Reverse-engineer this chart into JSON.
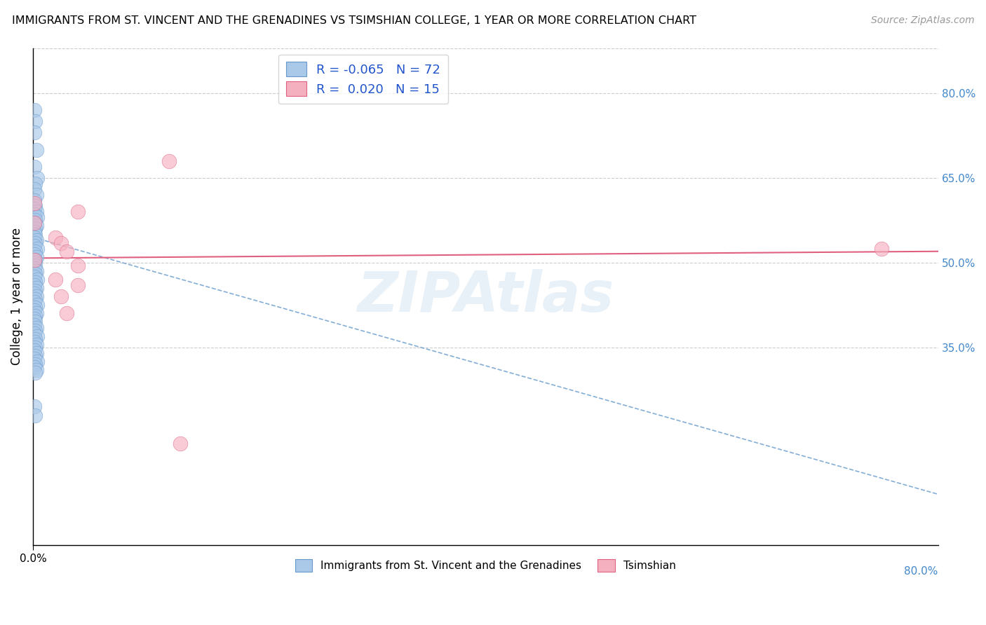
{
  "title": "IMMIGRANTS FROM ST. VINCENT AND THE GRENADINES VS TSIMSHIAN COLLEGE, 1 YEAR OR MORE CORRELATION CHART",
  "source": "Source: ZipAtlas.com",
  "ylabel": "College, 1 year or more",
  "xlim": [
    0.0,
    0.8
  ],
  "ylim": [
    0.0,
    0.88
  ],
  "yticks": [
    0.35,
    0.5,
    0.65,
    0.8
  ],
  "ytick_labels": [
    "35.0%",
    "50.0%",
    "65.0%",
    "80.0%"
  ],
  "xtick_bottom_left": "0.0%",
  "xtick_bottom_right": "80.0%",
  "watermark": "ZIPAtlas",
  "blue_R": -0.065,
  "blue_N": 72,
  "pink_R": 0.02,
  "pink_N": 15,
  "blue_color": "#aac8e8",
  "pink_color": "#f5b0c0",
  "blue_edge_color": "#6699cc",
  "pink_edge_color": "#e06080",
  "legend_label_blue": "Immigrants from St. Vincent and the Grenadines",
  "legend_label_pink": "Tsimshian",
  "blue_points_x": [
    0.001,
    0.002,
    0.001,
    0.003,
    0.001,
    0.004,
    0.002,
    0.001,
    0.003,
    0.001,
    0.002,
    0.001,
    0.003,
    0.001,
    0.004,
    0.002,
    0.001,
    0.003,
    0.002,
    0.001,
    0.002,
    0.001,
    0.003,
    0.002,
    0.001,
    0.004,
    0.002,
    0.001,
    0.003,
    0.002,
    0.001,
    0.002,
    0.001,
    0.003,
    0.002,
    0.001,
    0.004,
    0.002,
    0.001,
    0.003,
    0.002,
    0.001,
    0.003,
    0.002,
    0.001,
    0.004,
    0.002,
    0.001,
    0.003,
    0.002,
    0.001,
    0.002,
    0.001,
    0.003,
    0.002,
    0.001,
    0.004,
    0.002,
    0.001,
    0.003,
    0.002,
    0.001,
    0.003,
    0.002,
    0.001,
    0.004,
    0.002,
    0.001,
    0.003,
    0.002,
    0.001,
    0.002
  ],
  "blue_points_y": [
    0.77,
    0.75,
    0.73,
    0.7,
    0.67,
    0.65,
    0.64,
    0.63,
    0.62,
    0.61,
    0.6,
    0.595,
    0.59,
    0.585,
    0.58,
    0.575,
    0.57,
    0.565,
    0.56,
    0.555,
    0.55,
    0.545,
    0.54,
    0.535,
    0.53,
    0.525,
    0.52,
    0.515,
    0.51,
    0.505,
    0.5,
    0.495,
    0.49,
    0.485,
    0.48,
    0.475,
    0.47,
    0.465,
    0.46,
    0.455,
    0.45,
    0.445,
    0.44,
    0.435,
    0.43,
    0.425,
    0.42,
    0.415,
    0.41,
    0.405,
    0.4,
    0.395,
    0.39,
    0.385,
    0.38,
    0.375,
    0.37,
    0.365,
    0.36,
    0.355,
    0.35,
    0.345,
    0.34,
    0.335,
    0.33,
    0.325,
    0.32,
    0.315,
    0.31,
    0.305,
    0.245,
    0.23
  ],
  "pink_points_x": [
    0.001,
    0.001,
    0.001,
    0.02,
    0.02,
    0.025,
    0.025,
    0.03,
    0.03,
    0.04,
    0.04,
    0.04,
    0.12,
    0.75,
    0.13
  ],
  "pink_points_y": [
    0.605,
    0.57,
    0.505,
    0.545,
    0.47,
    0.535,
    0.44,
    0.52,
    0.41,
    0.495,
    0.46,
    0.59,
    0.68,
    0.525,
    0.18
  ],
  "blue_trend_x0": 0.0,
  "blue_trend_x1": 0.8,
  "blue_trend_y0": 0.545,
  "blue_trend_y1": 0.09,
  "pink_trend_x0": 0.0,
  "pink_trend_x1": 0.8,
  "pink_trend_y0": 0.508,
  "pink_trend_y1": 0.52
}
